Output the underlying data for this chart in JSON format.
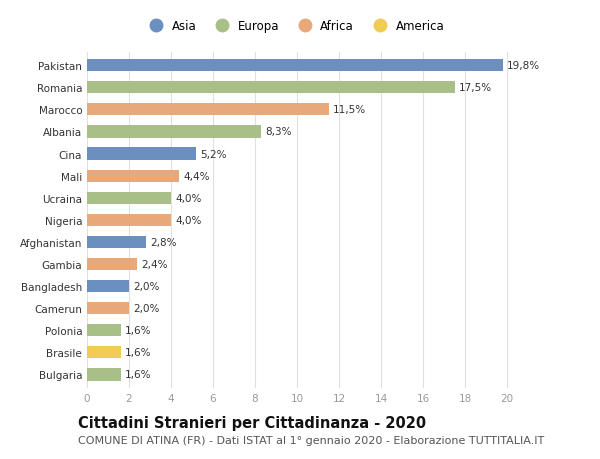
{
  "countries": [
    "Pakistan",
    "Romania",
    "Marocco",
    "Albania",
    "Cina",
    "Mali",
    "Ucraina",
    "Nigeria",
    "Afghanistan",
    "Gambia",
    "Bangladesh",
    "Camerun",
    "Polonia",
    "Brasile",
    "Bulgaria"
  ],
  "values": [
    19.8,
    17.5,
    11.5,
    8.3,
    5.2,
    4.4,
    4.0,
    4.0,
    2.8,
    2.4,
    2.0,
    2.0,
    1.6,
    1.6,
    1.6
  ],
  "labels": [
    "19,8%",
    "17,5%",
    "11,5%",
    "8,3%",
    "5,2%",
    "4,4%",
    "4,0%",
    "4,0%",
    "2,8%",
    "2,4%",
    "2,0%",
    "2,0%",
    "1,6%",
    "1,6%",
    "1,6%"
  ],
  "continents": [
    "Asia",
    "Europa",
    "Africa",
    "Europa",
    "Asia",
    "Africa",
    "Europa",
    "Africa",
    "Asia",
    "Africa",
    "Asia",
    "Africa",
    "Europa",
    "America",
    "Europa"
  ],
  "continent_colors": {
    "Asia": "#6b8fbe",
    "Europa": "#a8bf88",
    "Africa": "#e8a87a",
    "America": "#f0cc55"
  },
  "legend_order": [
    "Asia",
    "Europa",
    "Africa",
    "America"
  ],
  "title": "Cittadini Stranieri per Cittadinanza - 2020",
  "subtitle": "COMUNE DI ATINA (FR) - Dati ISTAT al 1° gennaio 2020 - Elaborazione TUTTITALIA.IT",
  "xlim": [
    0,
    21
  ],
  "xticks": [
    0,
    2,
    4,
    6,
    8,
    10,
    12,
    14,
    16,
    18,
    20
  ],
  "background_color": "#ffffff",
  "grid_color": "#e0e0e0",
  "bar_height": 0.55,
  "title_fontsize": 10.5,
  "subtitle_fontsize": 8,
  "label_fontsize": 7.5,
  "tick_fontsize": 7.5,
  "legend_fontsize": 8.5
}
